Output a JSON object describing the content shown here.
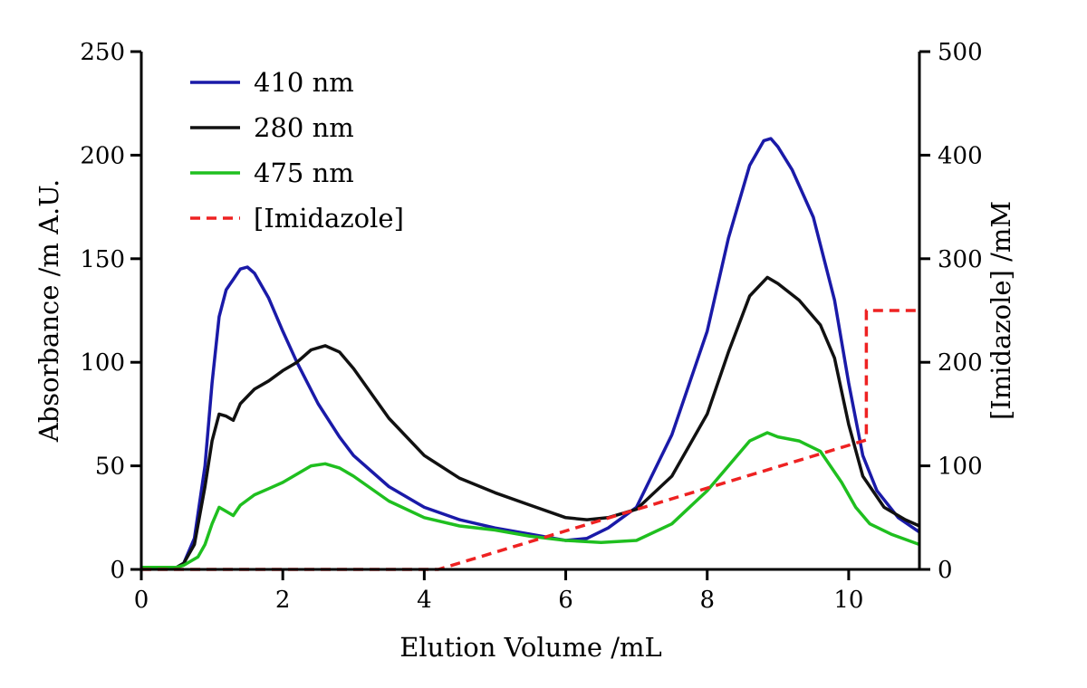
{
  "chart_data": {
    "type": "line",
    "title": "",
    "xlabel": "Elution Volume /mL",
    "ylabel": "Absorbance /m A.U.",
    "y2label": "[Imidazole] /mM",
    "xlim": [
      0,
      11
    ],
    "ylim": [
      0,
      250
    ],
    "y2lim": [
      0,
      500
    ],
    "xticks": [
      0,
      2,
      4,
      6,
      8,
      10
    ],
    "yticks": [
      0,
      50,
      100,
      150,
      200,
      250
    ],
    "y2ticks": [
      0,
      100,
      200,
      300,
      400,
      500
    ],
    "legend_position": "top-left",
    "grid": false,
    "series": [
      {
        "name": "410 nm",
        "axis": "left",
        "color": "#1a1aa8",
        "style": "solid",
        "points": [
          [
            0,
            1
          ],
          [
            0.5,
            1
          ],
          [
            0.6,
            3
          ],
          [
            0.75,
            15
          ],
          [
            0.9,
            50
          ],
          [
            1.0,
            90
          ],
          [
            1.1,
            122
          ],
          [
            1.2,
            135
          ],
          [
            1.3,
            140
          ],
          [
            1.4,
            145
          ],
          [
            1.5,
            146
          ],
          [
            1.6,
            143
          ],
          [
            1.8,
            131
          ],
          [
            2.0,
            115
          ],
          [
            2.2,
            100
          ],
          [
            2.5,
            80
          ],
          [
            2.8,
            64
          ],
          [
            3.0,
            55
          ],
          [
            3.5,
            40
          ],
          [
            4.0,
            30
          ],
          [
            4.5,
            24
          ],
          [
            5.0,
            20
          ],
          [
            5.5,
            17
          ],
          [
            6.0,
            14
          ],
          [
            6.3,
            15
          ],
          [
            6.6,
            20
          ],
          [
            7.0,
            30
          ],
          [
            7.5,
            65
          ],
          [
            8.0,
            115
          ],
          [
            8.3,
            160
          ],
          [
            8.6,
            195
          ],
          [
            8.8,
            207
          ],
          [
            8.9,
            208
          ],
          [
            9.0,
            204
          ],
          [
            9.2,
            193
          ],
          [
            9.5,
            170
          ],
          [
            9.8,
            130
          ],
          [
            10.0,
            90
          ],
          [
            10.2,
            55
          ],
          [
            10.4,
            38
          ],
          [
            10.7,
            25
          ],
          [
            11.0,
            18
          ]
        ]
      },
      {
        "name": "280 nm",
        "axis": "left",
        "color": "#111111",
        "style": "solid",
        "points": [
          [
            0,
            1
          ],
          [
            0.5,
            1
          ],
          [
            0.6,
            3
          ],
          [
            0.75,
            12
          ],
          [
            0.9,
            40
          ],
          [
            1.0,
            62
          ],
          [
            1.1,
            75
          ],
          [
            1.2,
            74
          ],
          [
            1.3,
            72
          ],
          [
            1.4,
            80
          ],
          [
            1.6,
            87
          ],
          [
            1.8,
            91
          ],
          [
            2.0,
            96
          ],
          [
            2.2,
            100
          ],
          [
            2.4,
            106
          ],
          [
            2.6,
            108
          ],
          [
            2.8,
            105
          ],
          [
            3.0,
            97
          ],
          [
            3.5,
            73
          ],
          [
            4.0,
            55
          ],
          [
            4.5,
            44
          ],
          [
            5.0,
            37
          ],
          [
            5.5,
            31
          ],
          [
            6.0,
            25
          ],
          [
            6.3,
            24
          ],
          [
            6.6,
            25
          ],
          [
            7.0,
            29
          ],
          [
            7.5,
            45
          ],
          [
            8.0,
            75
          ],
          [
            8.3,
            105
          ],
          [
            8.6,
            132
          ],
          [
            8.85,
            141
          ],
          [
            9.0,
            138
          ],
          [
            9.3,
            130
          ],
          [
            9.6,
            118
          ],
          [
            9.8,
            102
          ],
          [
            10.0,
            70
          ],
          [
            10.2,
            45
          ],
          [
            10.5,
            30
          ],
          [
            10.8,
            24
          ],
          [
            11.0,
            21
          ]
        ]
      },
      {
        "name": "475 nm",
        "axis": "left",
        "color": "#1fbf1f",
        "style": "solid",
        "points": [
          [
            0,
            1
          ],
          [
            0.5,
            1
          ],
          [
            0.6,
            2
          ],
          [
            0.8,
            6
          ],
          [
            0.9,
            12
          ],
          [
            1.0,
            22
          ],
          [
            1.1,
            30
          ],
          [
            1.2,
            28
          ],
          [
            1.3,
            26
          ],
          [
            1.4,
            31
          ],
          [
            1.6,
            36
          ],
          [
            1.8,
            39
          ],
          [
            2.0,
            42
          ],
          [
            2.2,
            46
          ],
          [
            2.4,
            50
          ],
          [
            2.6,
            51
          ],
          [
            2.8,
            49
          ],
          [
            3.0,
            45
          ],
          [
            3.5,
            33
          ],
          [
            4.0,
            25
          ],
          [
            4.5,
            21
          ],
          [
            5.0,
            19
          ],
          [
            5.5,
            16
          ],
          [
            6.0,
            14
          ],
          [
            6.5,
            13
          ],
          [
            7.0,
            14
          ],
          [
            7.5,
            22
          ],
          [
            8.0,
            38
          ],
          [
            8.3,
            50
          ],
          [
            8.6,
            62
          ],
          [
            8.85,
            66
          ],
          [
            9.0,
            64
          ],
          [
            9.3,
            62
          ],
          [
            9.6,
            57
          ],
          [
            9.9,
            42
          ],
          [
            10.1,
            30
          ],
          [
            10.3,
            22
          ],
          [
            10.6,
            17
          ],
          [
            11.0,
            12
          ]
        ]
      },
      {
        "name": "[Imidazole]",
        "axis": "right",
        "color": "#ee2222",
        "style": "dashed",
        "points": [
          [
            0,
            0
          ],
          [
            4.2,
            0
          ],
          [
            10.25,
            125
          ],
          [
            10.25,
            250
          ],
          [
            11.0,
            250
          ]
        ]
      }
    ]
  }
}
